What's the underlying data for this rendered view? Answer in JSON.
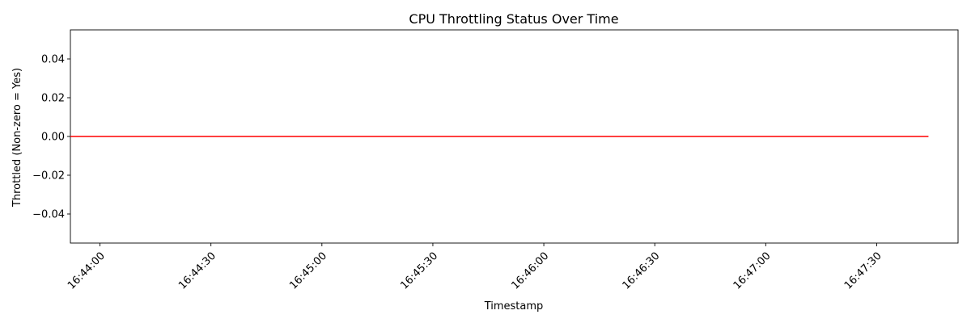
{
  "chart_data": {
    "type": "line",
    "title": "CPU Throttling Status Over Time",
    "xlabel": "Timestamp",
    "ylabel": "Throttled (Non-zero = Yes)",
    "xlim": [
      "16:43:52",
      "16:47:52"
    ],
    "ylim": [
      -0.055,
      0.055
    ],
    "x_ticks": [
      "16:44:00",
      "16:44:30",
      "16:45:00",
      "16:45:30",
      "16:46:00",
      "16:46:30",
      "16:47:00",
      "16:47:30"
    ],
    "y_ticks": [
      "0.04",
      "0.02",
      "0.00",
      "−0.02",
      "−0.04"
    ],
    "y_tick_values": [
      0.04,
      0.02,
      0.0,
      -0.02,
      -0.04
    ],
    "grid": false,
    "series": [
      {
        "color": "#ff0000",
        "x": [
          "16:43:52",
          "16:47:44"
        ],
        "y": [
          0,
          0
        ]
      }
    ]
  }
}
